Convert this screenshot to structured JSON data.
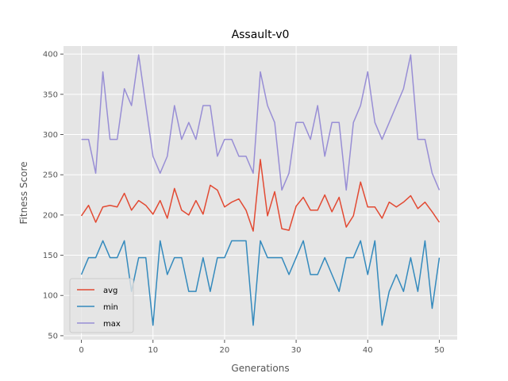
{
  "chart_data": {
    "type": "line",
    "title": "Assault-v0",
    "xlabel": "Generations",
    "ylabel": "Fitness Score",
    "xlim": [
      -2.5,
      52.5
    ],
    "ylim": [
      45,
      410
    ],
    "xticks": [
      0,
      10,
      20,
      30,
      40,
      50
    ],
    "yticks": [
      50,
      100,
      150,
      200,
      250,
      300,
      350,
      400
    ],
    "grid": true,
    "legend_position": "lower-left",
    "series": [
      {
        "name": "avg",
        "color": "#E24A33",
        "x": [
          0,
          1,
          2,
          3,
          4,
          5,
          6,
          7,
          8,
          9,
          10,
          11,
          12,
          13,
          14,
          15,
          16,
          17,
          18,
          19,
          20,
          21,
          22,
          23,
          24,
          25,
          26,
          27,
          28,
          29,
          30,
          31,
          32,
          33,
          34,
          35,
          36,
          37,
          38,
          39,
          40,
          41,
          42,
          43,
          44,
          45,
          46,
          47,
          48,
          49,
          50
        ],
        "values": [
          199,
          212,
          191,
          210,
          212,
          210,
          227,
          206,
          218,
          212,
          201,
          218,
          196,
          233,
          206,
          200,
          218,
          201,
          237,
          231,
          210,
          216,
          220,
          206,
          180,
          269,
          199,
          229,
          183,
          181,
          211,
          222,
          206,
          206,
          225,
          204,
          222,
          185,
          199,
          241,
          210,
          210,
          196,
          216,
          210,
          216,
          224,
          208,
          216,
          204,
          191
        ]
      },
      {
        "name": "min",
        "color": "#348ABD",
        "x": [
          0,
          1,
          2,
          3,
          4,
          5,
          6,
          7,
          8,
          9,
          10,
          11,
          12,
          13,
          14,
          15,
          16,
          17,
          18,
          19,
          20,
          21,
          22,
          23,
          24,
          25,
          26,
          27,
          28,
          29,
          30,
          31,
          32,
          33,
          34,
          35,
          36,
          37,
          38,
          39,
          40,
          41,
          42,
          43,
          44,
          45,
          46,
          47,
          48,
          49,
          50
        ],
        "values": [
          126,
          147,
          147,
          168,
          147,
          147,
          168,
          105,
          147,
          147,
          63,
          168,
          126,
          147,
          147,
          105,
          105,
          147,
          105,
          147,
          147,
          168,
          168,
          168,
          63,
          168,
          147,
          147,
          147,
          126,
          147,
          168,
          126,
          126,
          147,
          126,
          105,
          147,
          147,
          168,
          126,
          168,
          63,
          105,
          126,
          105,
          147,
          105,
          168,
          84,
          147
        ]
      },
      {
        "name": "max",
        "color": "#988ED5",
        "x": [
          0,
          1,
          2,
          3,
          4,
          5,
          6,
          7,
          8,
          9,
          10,
          11,
          12,
          13,
          14,
          15,
          16,
          17,
          18,
          19,
          20,
          21,
          22,
          23,
          24,
          25,
          26,
          27,
          28,
          29,
          30,
          31,
          32,
          33,
          34,
          35,
          36,
          37,
          38,
          39,
          40,
          41,
          42,
          43,
          44,
          45,
          46,
          47,
          48,
          49,
          50
        ],
        "values": [
          294,
          294,
          252,
          378,
          294,
          294,
          357,
          336,
          399,
          336,
          273,
          252,
          273,
          336,
          294,
          315,
          294,
          336,
          336,
          273,
          294,
          294,
          273,
          273,
          252,
          378,
          336,
          315,
          231,
          252,
          315,
          315,
          294,
          336,
          273,
          315,
          315,
          231,
          315,
          336,
          378,
          315,
          294,
          315,
          336,
          357,
          399,
          294,
          294,
          252,
          231
        ]
      }
    ]
  }
}
